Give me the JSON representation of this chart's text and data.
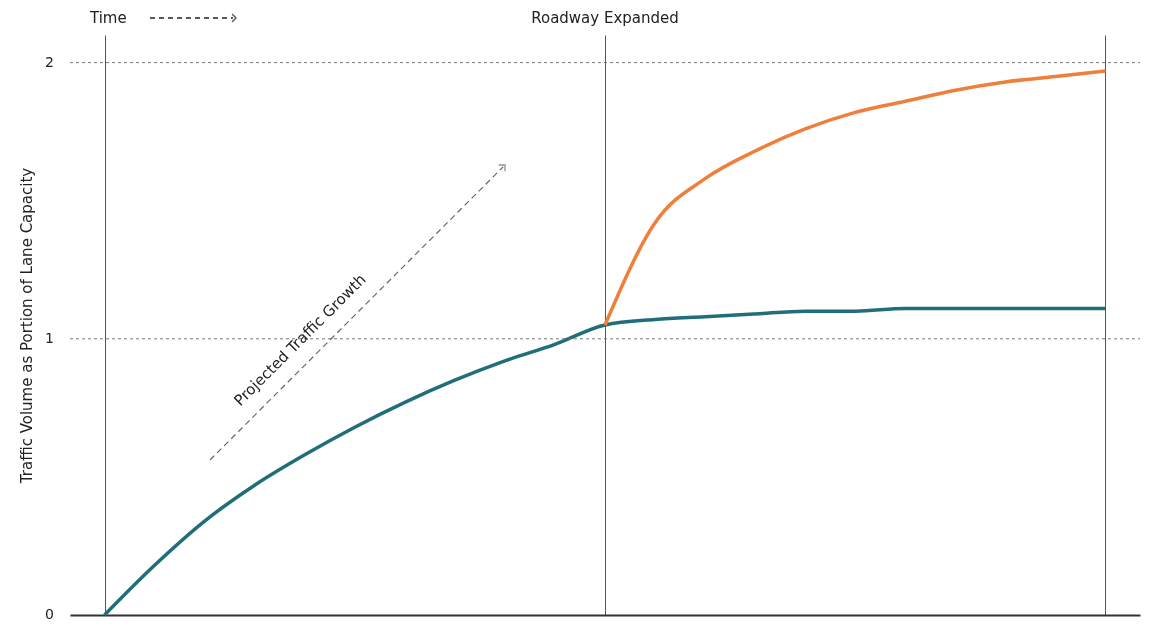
{
  "chart_data": {
    "type": "line",
    "ylabel": "Traffic Volume as Portion of Lane Capacity",
    "annotations": [
      "Time",
      "Roadway Expanded",
      "Projected Traffic Growth"
    ],
    "categories": [
      null,
      null,
      null,
      null,
      null,
      null,
      null,
      null,
      null,
      null,
      null,
      null,
      null,
      null,
      null,
      null,
      null,
      null,
      null,
      null,
      null
    ],
    "series": [
      {
        "color": "#1f6e7a",
        "values": [
          0,
          0.18,
          0.34,
          0.47,
          0.58,
          0.68,
          0.77,
          0.85,
          0.92,
          0.98,
          1.05,
          1.07,
          1.08,
          1.09,
          1.1,
          1.1,
          1.11,
          1.11,
          1.11,
          1.11,
          1.11
        ]
      },
      {
        "color": "#f07f3c",
        "values": [
          null,
          null,
          null,
          null,
          null,
          null,
          null,
          null,
          null,
          null,
          1.05,
          1.42,
          1.58,
          1.68,
          1.76,
          1.82,
          1.86,
          1.9,
          1.93,
          1.95,
          1.97
        ]
      }
    ],
    "ylim": [
      0,
      2.1
    ],
    "yticks": [
      0,
      1,
      2
    ],
    "ref_lines": [
      {
        "axis": "y",
        "value": 1,
        "color": "#777777",
        "line_style": "dotted"
      },
      {
        "axis": "y",
        "value": 2,
        "color": "#777777",
        "line_style": "dotted"
      }
    ],
    "grid": "x",
    "legend": false,
    "marker": "none",
    "line_style": "solid"
  }
}
